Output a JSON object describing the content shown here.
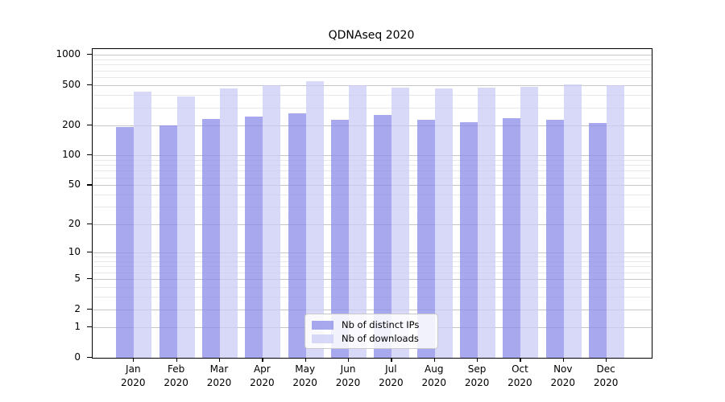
{
  "title": "QDNAseq 2020",
  "colors": {
    "ips_bar": "rgba(139,139,232,0.75)",
    "downloads_bar": "rgba(203,203,246,0.75)",
    "grid_major": "#c6c6c6",
    "grid_minor": "#e8e8e8",
    "axis": "#000000"
  },
  "legend": {
    "items": [
      {
        "label": "Nb of distinct IPs",
        "series": "ips"
      },
      {
        "label": "Nb of downloads",
        "series": "downloads"
      }
    ]
  },
  "x_axis": {
    "months": [
      "Jan",
      "Feb",
      "Mar",
      "Apr",
      "May",
      "Jun",
      "Jul",
      "Aug",
      "Sep",
      "Oct",
      "Nov",
      "Dec"
    ],
    "year": "2020"
  },
  "y_axis": {
    "tick_values": [
      0,
      1,
      2,
      5,
      10,
      20,
      50,
      100,
      200,
      500,
      1000
    ],
    "minor_tick_values": [
      3,
      4,
      6,
      7,
      8,
      9,
      30,
      40,
      60,
      70,
      80,
      90,
      300,
      400,
      600,
      700,
      800,
      900
    ]
  },
  "chart_data": {
    "type": "bar",
    "title": "QDNAseq 2020",
    "categories": [
      "Jan 2020",
      "Feb 2020",
      "Mar 2020",
      "Apr 2020",
      "May 2020",
      "Jun 2020",
      "Jul 2020",
      "Aug 2020",
      "Sep 2020",
      "Oct 2020",
      "Nov 2020",
      "Dec 2020"
    ],
    "series": [
      {
        "name": "Nb of distinct IPs",
        "values": [
          191,
          200,
          229,
          242,
          263,
          226,
          255,
          228,
          213,
          233,
          225,
          209
        ]
      },
      {
        "name": "Nb of downloads",
        "values": [
          433,
          383,
          463,
          497,
          543,
          496,
          471,
          467,
          470,
          480,
          506,
          501
        ]
      }
    ],
    "xlabel": "",
    "ylabel": "",
    "yscale": "log10(value+1)",
    "ylim": [
      0,
      1000
    ],
    "yticks": [
      0,
      1,
      2,
      5,
      10,
      20,
      50,
      100,
      200,
      500,
      1000
    ],
    "grid": true,
    "legend_position": "inside-bottom-center"
  }
}
